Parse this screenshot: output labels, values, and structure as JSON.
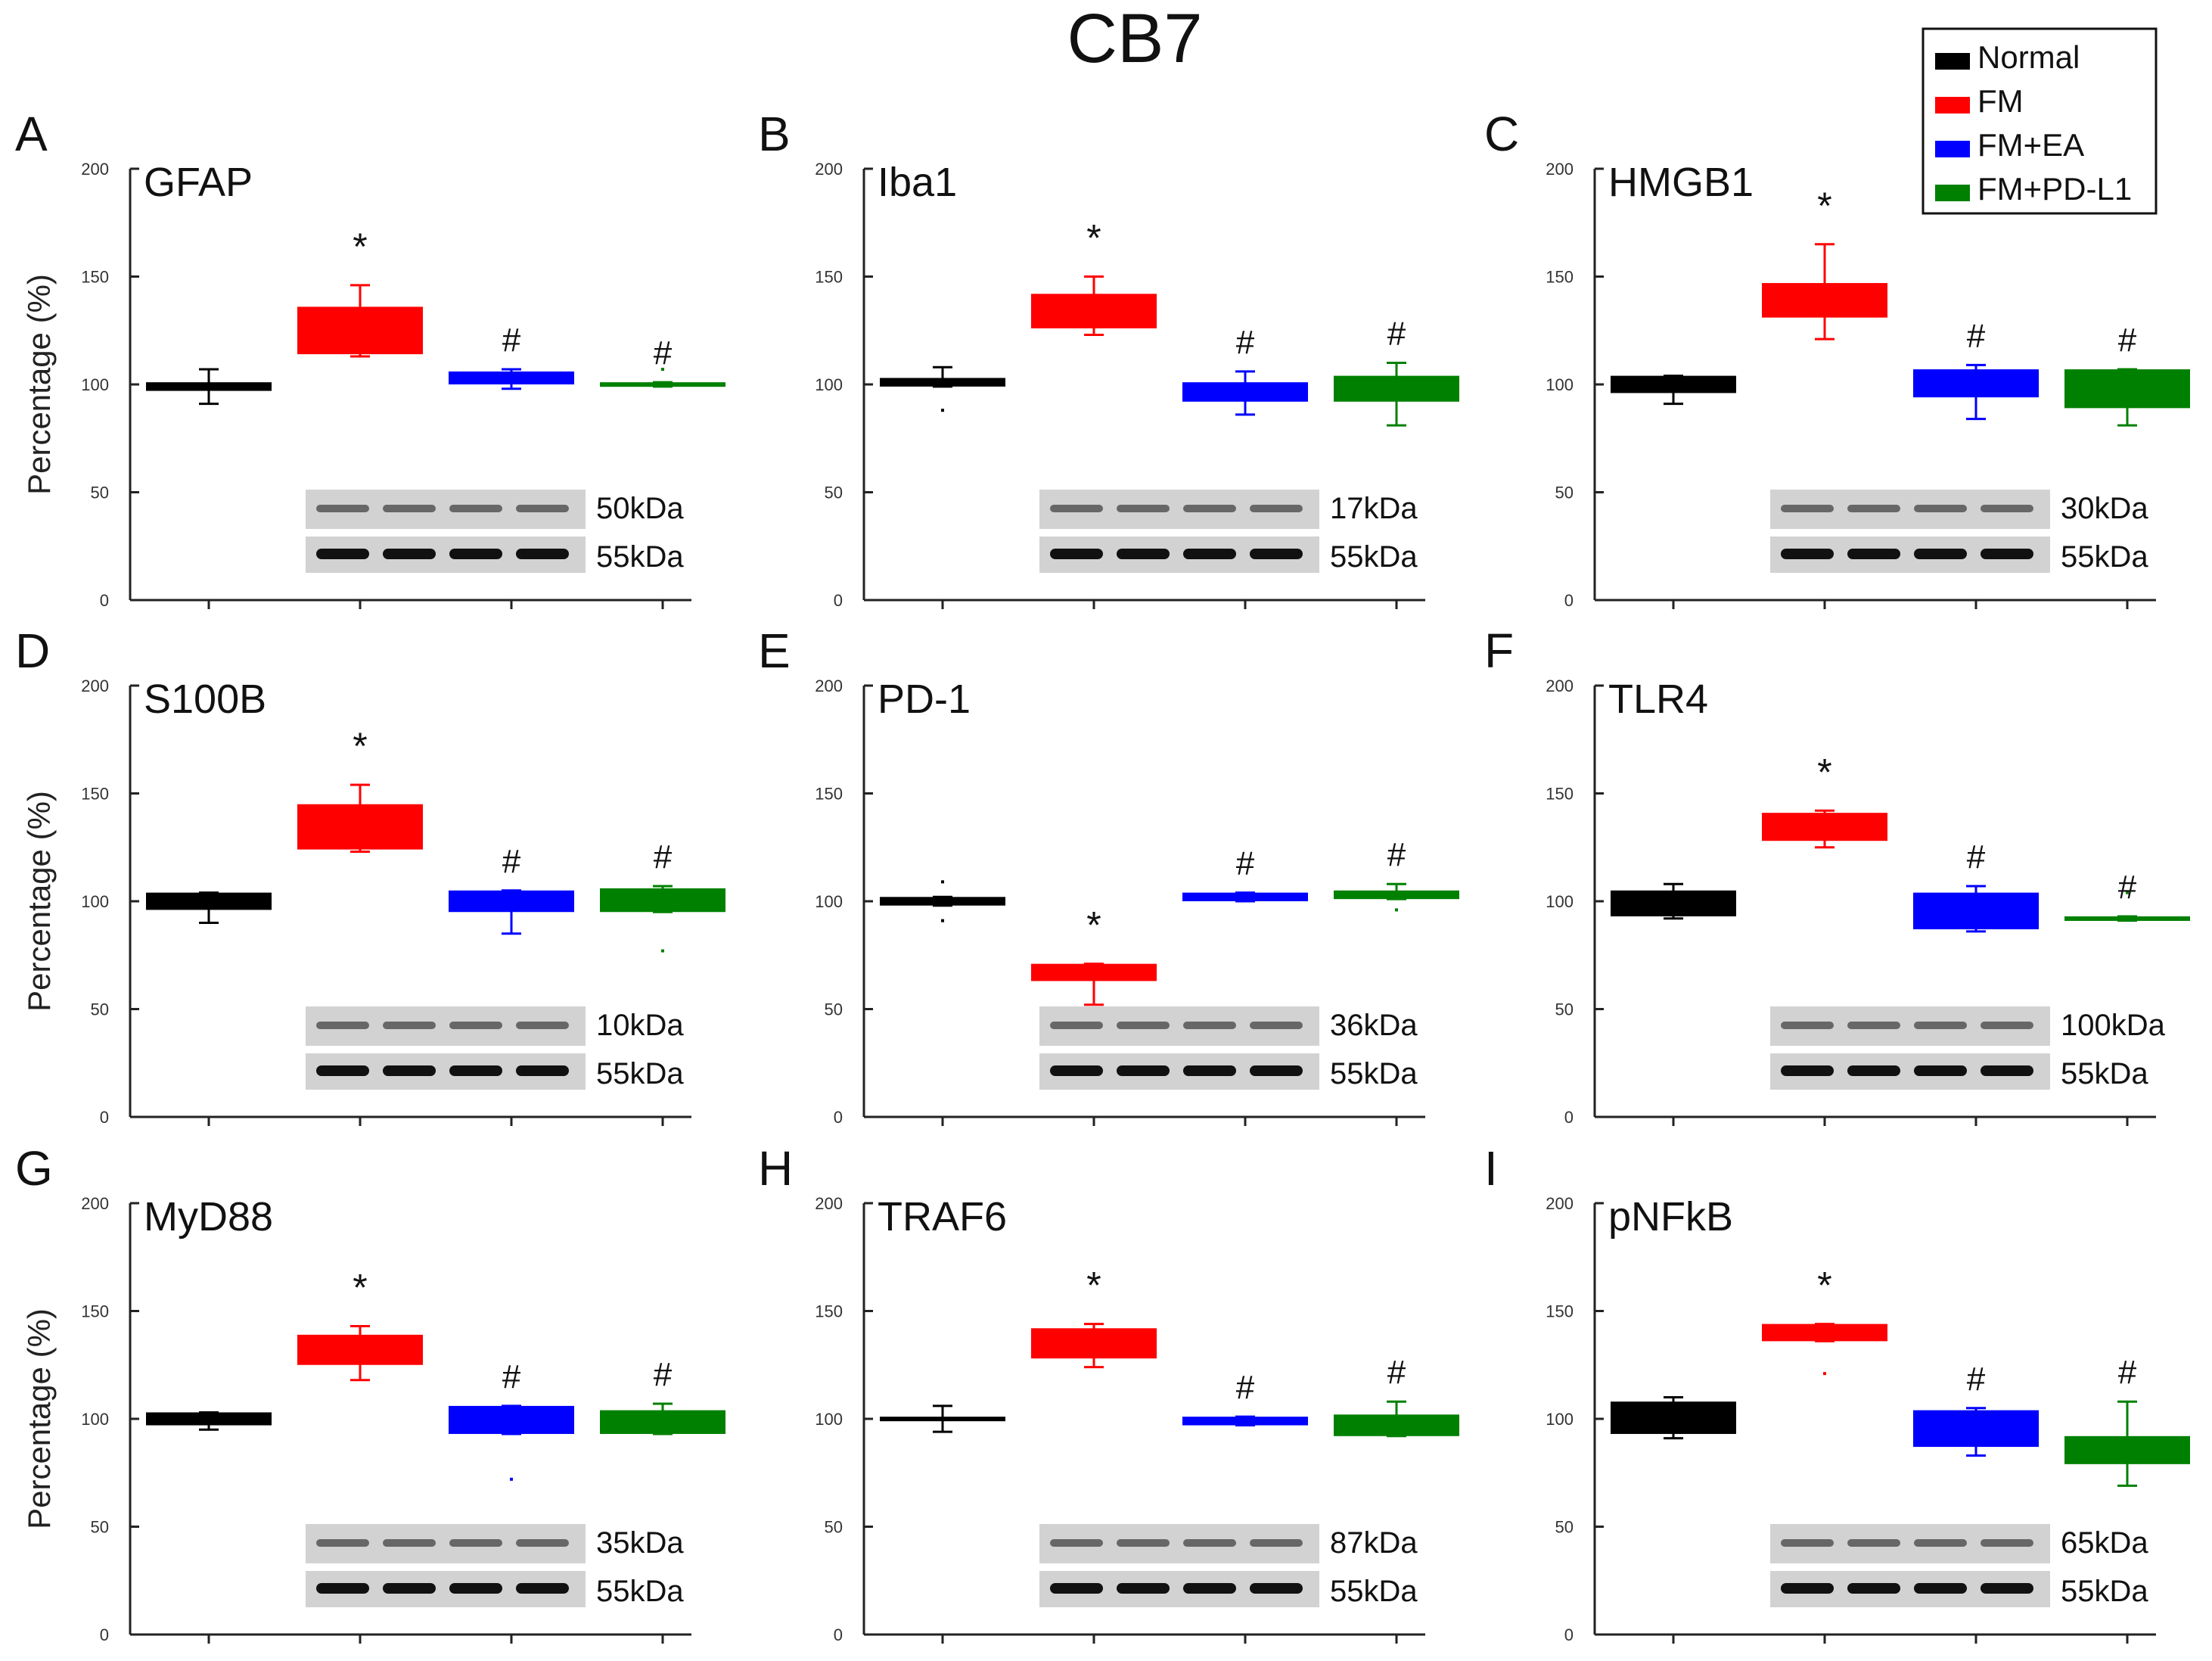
{
  "figure_title": "CB7",
  "legend": {
    "placement": "top-right",
    "entries": [
      {
        "name": "Normal",
        "color": "#000000"
      },
      {
        "name": "FM",
        "color": "#ff0000"
      },
      {
        "name": "FM+EA",
        "color": "#0000ff"
      },
      {
        "name": "FM+PD-L1",
        "color": "#008000"
      }
    ]
  },
  "chart_data": [
    {
      "type": "box",
      "panel": "A",
      "title": "GFAP",
      "ylabel": "Percentage (%)",
      "ylim": [
        0,
        200
      ],
      "yticks": [
        0,
        50,
        100,
        150,
        200
      ],
      "categories": [
        "Normal",
        "FM",
        "FM+EA",
        "FM+PD-L1"
      ],
      "boxes": [
        {
          "q1": 97,
          "q3": 101,
          "whisker_low": 91,
          "whisker_high": 107,
          "outliers": []
        },
        {
          "q1": 114,
          "q3": 136,
          "whisker_low": 113,
          "whisker_high": 146,
          "outliers": []
        },
        {
          "q1": 100,
          "q3": 106,
          "whisker_low": 98,
          "whisker_high": 107,
          "outliers": []
        },
        {
          "q1": 99,
          "q3": 101,
          "whisker_low": 99,
          "whisker_high": 101,
          "outliers": [
            107
          ]
        }
      ],
      "markers": [
        "",
        "*",
        "#",
        "#"
      ],
      "blot_labels": [
        "50kDa",
        "55kDa"
      ]
    },
    {
      "type": "box",
      "panel": "B",
      "title": "Iba1",
      "ylabel": "",
      "ylim": [
        0,
        200
      ],
      "yticks": [
        0,
        50,
        100,
        150,
        200
      ],
      "categories": [
        "Normal",
        "FM",
        "FM+EA",
        "FM+PD-L1"
      ],
      "boxes": [
        {
          "q1": 99,
          "q3": 103,
          "whisker_low": 99,
          "whisker_high": 108,
          "outliers": [
            88
          ]
        },
        {
          "q1": 126,
          "q3": 142,
          "whisker_low": 123,
          "whisker_high": 150,
          "outliers": []
        },
        {
          "q1": 92,
          "q3": 101,
          "whisker_low": 86,
          "whisker_high": 106,
          "outliers": []
        },
        {
          "q1": 92,
          "q3": 104,
          "whisker_low": 81,
          "whisker_high": 110,
          "outliers": []
        }
      ],
      "markers": [
        "",
        "*",
        "#",
        "#"
      ],
      "blot_labels": [
        "17kDa",
        "55kDa"
      ]
    },
    {
      "type": "box",
      "panel": "C",
      "title": "HMGB1",
      "ylabel": "",
      "ylim": [
        0,
        200
      ],
      "yticks": [
        0,
        50,
        100,
        150,
        200
      ],
      "categories": [
        "Normal",
        "FM",
        "FM+EA",
        "FM+PD-L1"
      ],
      "boxes": [
        {
          "q1": 96,
          "q3": 104,
          "whisker_low": 91,
          "whisker_high": 104,
          "outliers": []
        },
        {
          "q1": 131,
          "q3": 147,
          "whisker_low": 121,
          "whisker_high": 165,
          "outliers": []
        },
        {
          "q1": 94,
          "q3": 107,
          "whisker_low": 84,
          "whisker_high": 109,
          "outliers": []
        },
        {
          "q1": 89,
          "q3": 107,
          "whisker_low": 81,
          "whisker_high": 107,
          "outliers": []
        }
      ],
      "markers": [
        "",
        "*",
        "#",
        "#"
      ],
      "blot_labels": [
        "30kDa",
        "55kDa"
      ]
    },
    {
      "type": "box",
      "panel": "D",
      "title": "S100B",
      "ylabel": "Percentage (%)",
      "ylim": [
        0,
        200
      ],
      "yticks": [
        0,
        50,
        100,
        150,
        200
      ],
      "categories": [
        "Normal",
        "FM",
        "FM+EA",
        "FM+PD-L1"
      ],
      "boxes": [
        {
          "q1": 96,
          "q3": 104,
          "whisker_low": 90,
          "whisker_high": 104,
          "outliers": []
        },
        {
          "q1": 124,
          "q3": 145,
          "whisker_low": 123,
          "whisker_high": 154,
          "outliers": []
        },
        {
          "q1": 95,
          "q3": 105,
          "whisker_low": 85,
          "whisker_high": 105,
          "outliers": []
        },
        {
          "q1": 95,
          "q3": 106,
          "whisker_low": 95,
          "whisker_high": 107,
          "outliers": [
            77
          ]
        }
      ],
      "markers": [
        "",
        "*",
        "#",
        "#"
      ],
      "blot_labels": [
        "10kDa",
        "55kDa"
      ]
    },
    {
      "type": "box",
      "panel": "E",
      "title": "PD-1",
      "ylabel": "",
      "ylim": [
        0,
        200
      ],
      "yticks": [
        0,
        50,
        100,
        150,
        200
      ],
      "categories": [
        "Normal",
        "FM",
        "FM+EA",
        "FM+PD-L1"
      ],
      "boxes": [
        {
          "q1": 98,
          "q3": 102,
          "whisker_low": 98,
          "whisker_high": 102,
          "outliers": [
            109,
            91
          ]
        },
        {
          "q1": 63,
          "q3": 71,
          "whisker_low": 52,
          "whisker_high": 71,
          "outliers": []
        },
        {
          "q1": 100,
          "q3": 104,
          "whisker_low": 100,
          "whisker_high": 104,
          "outliers": []
        },
        {
          "q1": 101,
          "q3": 105,
          "whisker_low": 101,
          "whisker_high": 108,
          "outliers": [
            96
          ]
        }
      ],
      "markers": [
        "",
        "*",
        "#",
        "#"
      ],
      "blot_labels": [
        "36kDa",
        "55kDa"
      ]
    },
    {
      "type": "box",
      "panel": "F",
      "title": "TLR4",
      "ylabel": "",
      "ylim": [
        0,
        200
      ],
      "yticks": [
        0,
        50,
        100,
        150,
        200
      ],
      "categories": [
        "Normal",
        "FM",
        "FM+EA",
        "FM+PD-L1"
      ],
      "boxes": [
        {
          "q1": 93,
          "q3": 105,
          "whisker_low": 92,
          "whisker_high": 108,
          "outliers": []
        },
        {
          "q1": 128,
          "q3": 141,
          "whisker_low": 125,
          "whisker_high": 142,
          "outliers": []
        },
        {
          "q1": 87,
          "q3": 104,
          "whisker_low": 86,
          "whisker_high": 107,
          "outliers": []
        },
        {
          "q1": 91,
          "q3": 93,
          "whisker_low": 91,
          "whisker_high": 93,
          "outliers": [
            104
          ]
        }
      ],
      "markers": [
        "",
        "*",
        "#",
        "#"
      ],
      "blot_labels": [
        "100kDa",
        "55kDa"
      ]
    },
    {
      "type": "box",
      "panel": "G",
      "title": "MyD88",
      "ylabel": "Percentage (%)",
      "ylim": [
        0,
        200
      ],
      "yticks": [
        0,
        50,
        100,
        150,
        200
      ],
      "categories": [
        "Normal",
        "FM",
        "FM+EA",
        "FM+PD-L1"
      ],
      "boxes": [
        {
          "q1": 97,
          "q3": 103,
          "whisker_low": 95,
          "whisker_high": 103,
          "outliers": []
        },
        {
          "q1": 125,
          "q3": 139,
          "whisker_low": 118,
          "whisker_high": 143,
          "outliers": []
        },
        {
          "q1": 93,
          "q3": 106,
          "whisker_low": 93,
          "whisker_high": 106,
          "outliers": [
            72
          ]
        },
        {
          "q1": 93,
          "q3": 104,
          "whisker_low": 93,
          "whisker_high": 107,
          "outliers": []
        }
      ],
      "markers": [
        "",
        "*",
        "#",
        "#"
      ],
      "blot_labels": [
        "35kDa",
        "55kDa"
      ]
    },
    {
      "type": "box",
      "panel": "H",
      "title": "TRAF6",
      "ylabel": "",
      "ylim": [
        0,
        200
      ],
      "yticks": [
        0,
        50,
        100,
        150,
        200
      ],
      "categories": [
        "Normal",
        "FM",
        "FM+EA",
        "FM+PD-L1"
      ],
      "boxes": [
        {
          "q1": 99,
          "q3": 101,
          "whisker_low": 94,
          "whisker_high": 106,
          "outliers": []
        },
        {
          "q1": 128,
          "q3": 142,
          "whisker_low": 124,
          "whisker_high": 144,
          "outliers": []
        },
        {
          "q1": 97,
          "q3": 101,
          "whisker_low": 97,
          "whisker_high": 101,
          "outliers": []
        },
        {
          "q1": 92,
          "q3": 102,
          "whisker_low": 92,
          "whisker_high": 108,
          "outliers": []
        }
      ],
      "markers": [
        "",
        "*",
        "#",
        "#"
      ],
      "blot_labels": [
        "87kDa",
        "55kDa"
      ]
    },
    {
      "type": "box",
      "panel": "I",
      "title": "pNFkB",
      "ylabel": "",
      "ylim": [
        0,
        200
      ],
      "yticks": [
        0,
        50,
        100,
        150,
        200
      ],
      "categories": [
        "Normal",
        "FM",
        "FM+EA",
        "FM+PD-L1"
      ],
      "boxes": [
        {
          "q1": 93,
          "q3": 108,
          "whisker_low": 91,
          "whisker_high": 110,
          "outliers": []
        },
        {
          "q1": 136,
          "q3": 144,
          "whisker_low": 136,
          "whisker_high": 144,
          "outliers": [
            121
          ]
        },
        {
          "q1": 87,
          "q3": 104,
          "whisker_low": 83,
          "whisker_high": 105,
          "outliers": []
        },
        {
          "q1": 79,
          "q3": 92,
          "whisker_low": 69,
          "whisker_high": 108,
          "outliers": []
        }
      ],
      "markers": [
        "",
        "*",
        "#",
        "#"
      ],
      "blot_labels": [
        "65kDa",
        "55kDa"
      ]
    }
  ]
}
